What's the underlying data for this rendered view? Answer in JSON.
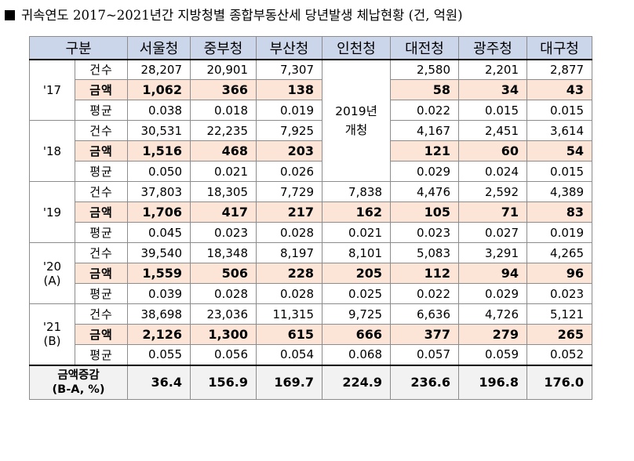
{
  "title": "귀속연도 2017~2021년간 지방청별 종합부동산세 당년발생 체납현황 (건, 억원)",
  "headers": [
    "구분",
    "서울청",
    "중부청",
    "부산청",
    "인천청",
    "대전청",
    "광주청",
    "대구청"
  ],
  "row_labels": {
    "count": "건수",
    "amount": "금액",
    "average": "평균"
  },
  "incheon_note_line1": "2019년",
  "incheon_note_line2": "개청",
  "years": [
    {
      "label1": "'17",
      "label2": "",
      "count": [
        "28,207",
        "20,901",
        "7,307",
        "",
        "2,580",
        "2,201",
        "2,877"
      ],
      "amount": [
        "1,062",
        "366",
        "138",
        "",
        "58",
        "34",
        "43"
      ],
      "average": [
        "0.038",
        "0.018",
        "0.019",
        "",
        "0.022",
        "0.015",
        "0.015"
      ]
    },
    {
      "label1": "'18",
      "label2": "",
      "count": [
        "30,531",
        "22,235",
        "7,925",
        "",
        "4,167",
        "2,451",
        "3,614"
      ],
      "amount": [
        "1,516",
        "468",
        "203",
        "",
        "121",
        "60",
        "54"
      ],
      "average": [
        "0.050",
        "0.021",
        "0.026",
        "",
        "0.029",
        "0.024",
        "0.015"
      ]
    },
    {
      "label1": "'19",
      "label2": "",
      "count": [
        "37,803",
        "18,305",
        "7,729",
        "7,838",
        "4,476",
        "2,592",
        "4,389"
      ],
      "amount": [
        "1,706",
        "417",
        "217",
        "162",
        "105",
        "71",
        "83"
      ],
      "average": [
        "0.045",
        "0.023",
        "0.028",
        "0.021",
        "0.023",
        "0.027",
        "0.019"
      ]
    },
    {
      "label1": "'20",
      "label2": "(A)",
      "count": [
        "39,540",
        "18,348",
        "8,197",
        "8,101",
        "5,083",
        "3,291",
        "4,265"
      ],
      "amount": [
        "1,559",
        "506",
        "228",
        "205",
        "112",
        "94",
        "96"
      ],
      "average": [
        "0.039",
        "0.028",
        "0.028",
        "0.025",
        "0.022",
        "0.029",
        "0.023"
      ]
    },
    {
      "label1": "'21",
      "label2": "(B)",
      "count": [
        "38,698",
        "23,036",
        "11,315",
        "9,725",
        "6,636",
        "4,726",
        "5,121"
      ],
      "amount": [
        "2,126",
        "1,300",
        "615",
        "666",
        "377",
        "279",
        "265"
      ],
      "average": [
        "0.055",
        "0.056",
        "0.054",
        "0.068",
        "0.057",
        "0.059",
        "0.052"
      ]
    }
  ],
  "increase": {
    "label_line1": "금액증감",
    "label_line2": "(B-A, %)",
    "values": [
      "36.4",
      "156.9",
      "169.7",
      "224.9",
      "236.6",
      "196.8",
      "176.0"
    ]
  }
}
